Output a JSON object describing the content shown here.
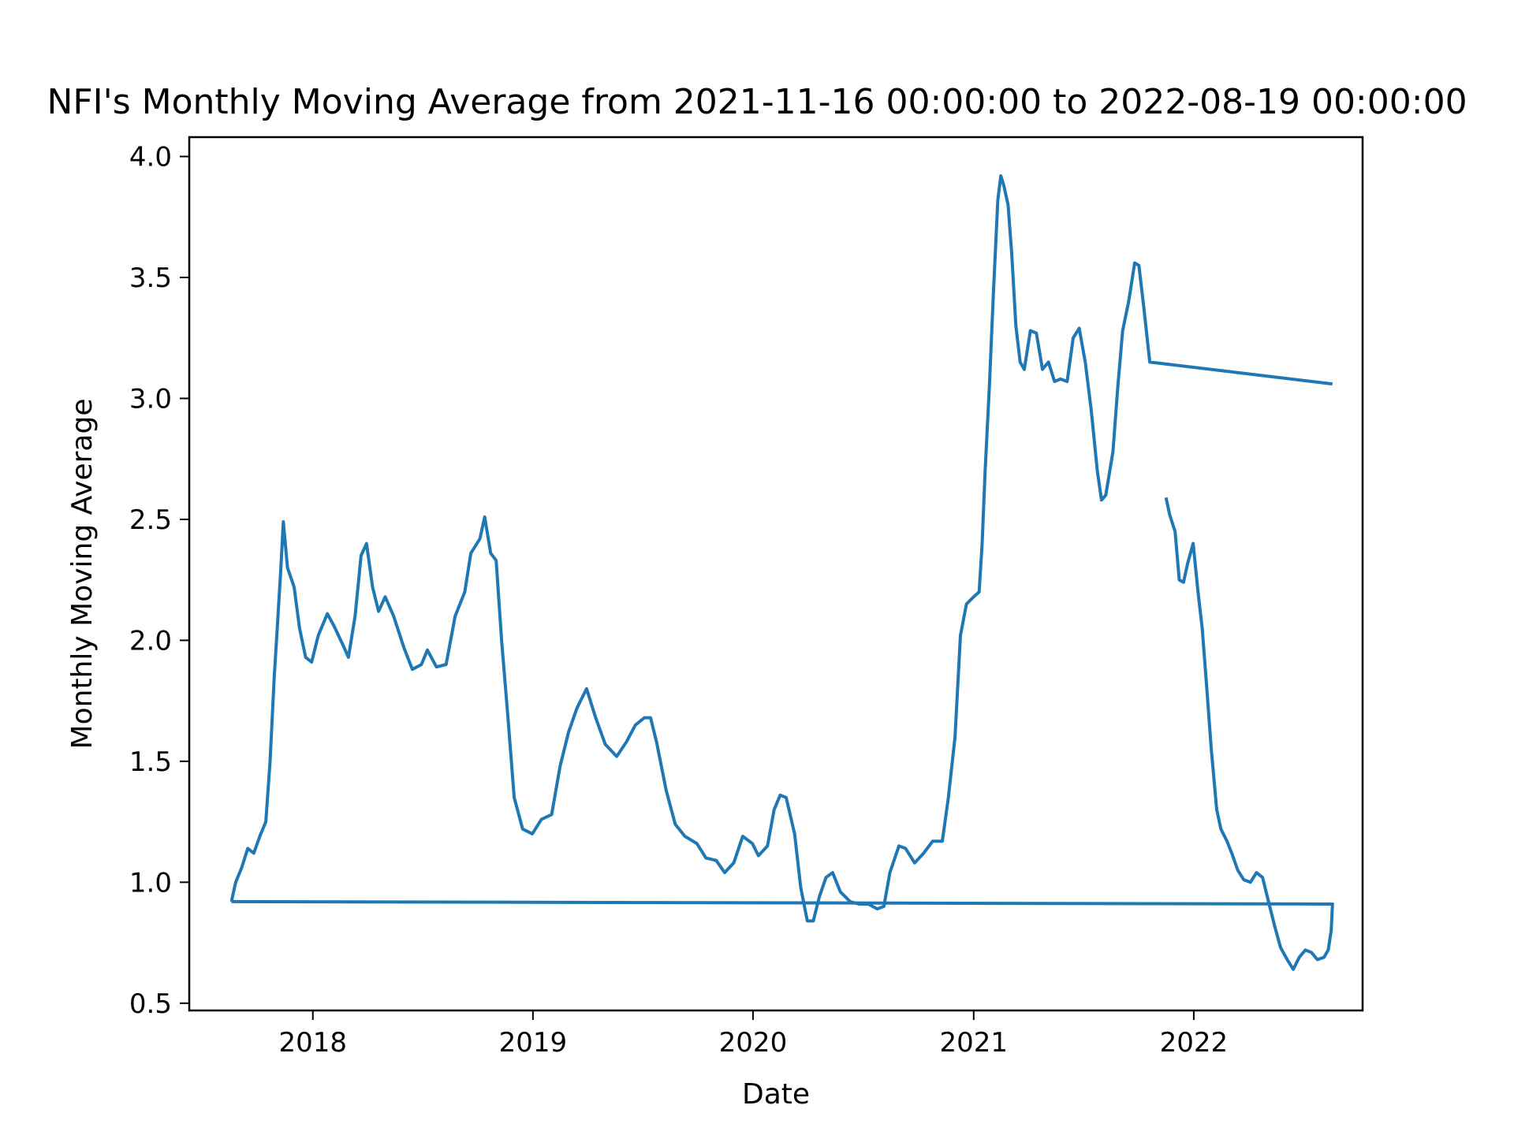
{
  "chart_data": {
    "type": "line",
    "title": "NFI's Monthly Moving Average from 2021-11-16 00:00:00 to 2022-08-19 00:00:00",
    "xlabel": "Date",
    "ylabel": "Monthly Moving Average",
    "x_ticks": [
      "2018",
      "2019",
      "2020",
      "2021",
      "2022"
    ],
    "y_ticks": [
      "0.5",
      "1.0",
      "1.5",
      "2.0",
      "2.5",
      "3.0",
      "3.5",
      "4.0"
    ],
    "xlim": [
      "2017-06-10",
      "2022-10-08"
    ],
    "ylim": [
      0.47,
      4.08
    ],
    "grid": false,
    "legend": "none",
    "colors": {
      "line": "#1f77b4"
    },
    "segments": [
      {
        "points": [
          [
            "2017-08-19",
            0.92
          ],
          [
            "2017-08-26",
            1.0
          ],
          [
            "2017-09-05",
            1.06
          ],
          [
            "2017-09-15",
            1.14
          ],
          [
            "2017-09-25",
            1.12
          ],
          [
            "2017-10-05",
            1.19
          ],
          [
            "2017-10-15",
            1.25
          ],
          [
            "2017-10-22",
            1.5
          ],
          [
            "2017-10-29",
            1.85
          ],
          [
            "2017-11-03",
            2.05
          ],
          [
            "2017-11-09",
            2.3
          ],
          [
            "2017-11-13",
            2.49
          ],
          [
            "2017-11-20",
            2.3
          ],
          [
            "2017-12-01",
            2.22
          ],
          [
            "2017-12-10",
            2.05
          ],
          [
            "2017-12-20",
            1.93
          ],
          [
            "2017-12-30",
            1.91
          ],
          [
            "2018-01-10",
            2.02
          ],
          [
            "2018-01-25",
            2.11
          ],
          [
            "2018-02-05",
            2.06
          ],
          [
            "2018-02-20",
            1.98
          ],
          [
            "2018-03-01",
            1.93
          ],
          [
            "2018-03-12",
            2.1
          ],
          [
            "2018-03-22",
            2.35
          ],
          [
            "2018-03-31",
            2.4
          ],
          [
            "2018-04-10",
            2.22
          ],
          [
            "2018-04-20",
            2.12
          ],
          [
            "2018-05-01",
            2.18
          ],
          [
            "2018-05-15",
            2.1
          ],
          [
            "2018-06-01",
            1.97
          ],
          [
            "2018-06-15",
            1.88
          ],
          [
            "2018-06-30",
            1.9
          ],
          [
            "2018-07-10",
            1.96
          ],
          [
            "2018-07-25",
            1.89
          ],
          [
            "2018-08-10",
            1.9
          ],
          [
            "2018-08-25",
            2.1
          ],
          [
            "2018-09-10",
            2.2
          ],
          [
            "2018-09-20",
            2.36
          ],
          [
            "2018-10-05",
            2.42
          ],
          [
            "2018-10-13",
            2.51
          ],
          [
            "2018-10-23",
            2.36
          ],
          [
            "2018-11-01",
            2.33
          ],
          [
            "2018-11-10",
            2.0
          ],
          [
            "2018-11-20",
            1.7
          ],
          [
            "2018-12-01",
            1.35
          ],
          [
            "2018-12-15",
            1.22
          ],
          [
            "2018-12-31",
            1.2
          ],
          [
            "2019-01-15",
            1.26
          ],
          [
            "2019-02-01",
            1.28
          ],
          [
            "2019-02-15",
            1.48
          ],
          [
            "2019-03-01",
            1.62
          ],
          [
            "2019-03-15",
            1.72
          ],
          [
            "2019-03-31",
            1.8
          ],
          [
            "2019-04-15",
            1.68
          ],
          [
            "2019-05-01",
            1.57
          ],
          [
            "2019-05-20",
            1.52
          ],
          [
            "2019-06-05",
            1.58
          ],
          [
            "2019-06-20",
            1.65
          ],
          [
            "2019-07-05",
            1.68
          ],
          [
            "2019-07-15",
            1.68
          ],
          [
            "2019-07-25",
            1.58
          ],
          [
            "2019-08-10",
            1.38
          ],
          [
            "2019-08-25",
            1.24
          ],
          [
            "2019-09-10",
            1.19
          ],
          [
            "2019-09-30",
            1.16
          ],
          [
            "2019-10-15",
            1.1
          ],
          [
            "2019-11-01",
            1.09
          ],
          [
            "2019-11-15",
            1.04
          ],
          [
            "2019-11-30",
            1.08
          ],
          [
            "2019-12-15",
            1.19
          ],
          [
            "2019-12-31",
            1.16
          ],
          [
            "2020-01-10",
            1.11
          ],
          [
            "2020-01-25",
            1.15
          ],
          [
            "2020-02-05",
            1.3
          ],
          [
            "2020-02-15",
            1.36
          ],
          [
            "2020-02-25",
            1.35
          ],
          [
            "2020-03-10",
            1.2
          ],
          [
            "2020-03-20",
            0.98
          ],
          [
            "2020-03-31",
            0.84
          ],
          [
            "2020-04-10",
            0.84
          ],
          [
            "2020-04-20",
            0.94
          ],
          [
            "2020-05-01",
            1.02
          ],
          [
            "2020-05-12",
            1.04
          ],
          [
            "2020-05-25",
            0.96
          ],
          [
            "2020-06-10",
            0.92
          ],
          [
            "2020-06-25",
            0.91
          ],
          [
            "2020-07-10",
            0.91
          ],
          [
            "2020-07-25",
            0.89
          ],
          [
            "2020-08-05",
            0.9
          ],
          [
            "2020-08-15",
            1.04
          ],
          [
            "2020-08-30",
            1.15
          ],
          [
            "2020-09-10",
            1.14
          ],
          [
            "2020-09-25",
            1.08
          ],
          [
            "2020-10-10",
            1.12
          ],
          [
            "2020-10-25",
            1.17
          ],
          [
            "2020-11-10",
            1.17
          ],
          [
            "2020-11-20",
            1.35
          ],
          [
            "2020-12-01",
            1.6
          ],
          [
            "2020-12-10",
            2.02
          ],
          [
            "2020-12-20",
            2.15
          ],
          [
            "2021-01-01",
            2.18
          ],
          [
            "2021-01-10",
            2.2
          ],
          [
            "2021-01-15",
            2.4
          ],
          [
            "2021-01-20",
            2.7
          ],
          [
            "2021-01-27",
            3.05
          ],
          [
            "2021-02-03",
            3.45
          ],
          [
            "2021-02-10",
            3.82
          ],
          [
            "2021-02-15",
            3.92
          ],
          [
            "2021-02-20",
            3.88
          ],
          [
            "2021-02-27",
            3.8
          ],
          [
            "2021-03-05",
            3.6
          ],
          [
            "2021-03-12",
            3.3
          ],
          [
            "2021-03-19",
            3.15
          ],
          [
            "2021-03-26",
            3.12
          ],
          [
            "2021-04-05",
            3.28
          ],
          [
            "2021-04-15",
            3.27
          ],
          [
            "2021-04-25",
            3.12
          ],
          [
            "2021-05-05",
            3.15
          ],
          [
            "2021-05-15",
            3.07
          ],
          [
            "2021-05-25",
            3.08
          ],
          [
            "2021-06-05",
            3.07
          ],
          [
            "2021-06-15",
            3.25
          ],
          [
            "2021-06-25",
            3.29
          ],
          [
            "2021-07-05",
            3.15
          ],
          [
            "2021-07-15",
            2.95
          ],
          [
            "2021-07-25",
            2.7
          ],
          [
            "2021-08-01",
            2.58
          ],
          [
            "2021-08-08",
            2.6
          ],
          [
            "2021-08-20",
            2.78
          ],
          [
            "2021-08-28",
            3.05
          ],
          [
            "2021-09-05",
            3.28
          ],
          [
            "2021-09-15",
            3.4
          ],
          [
            "2021-09-25",
            3.56
          ],
          [
            "2021-10-02",
            3.55
          ],
          [
            "2021-10-10",
            3.38
          ],
          [
            "2021-10-20",
            3.15
          ],
          [
            "2022-08-19",
            3.06
          ]
        ]
      },
      {
        "points": [
          [
            "2021-11-16",
            2.59
          ],
          [
            "2021-11-22",
            2.52
          ],
          [
            "2021-12-01",
            2.45
          ],
          [
            "2021-12-08",
            2.25
          ],
          [
            "2021-12-15",
            2.24
          ],
          [
            "2021-12-22",
            2.32
          ],
          [
            "2021-12-31",
            2.4
          ],
          [
            "2022-01-08",
            2.2
          ],
          [
            "2022-01-15",
            2.05
          ],
          [
            "2022-01-22",
            1.82
          ],
          [
            "2022-01-30",
            1.55
          ],
          [
            "2022-02-08",
            1.3
          ],
          [
            "2022-02-15",
            1.22
          ],
          [
            "2022-02-25",
            1.17
          ],
          [
            "2022-03-05",
            1.12
          ],
          [
            "2022-03-15",
            1.05
          ],
          [
            "2022-03-25",
            1.01
          ],
          [
            "2022-04-05",
            1.0
          ],
          [
            "2022-04-15",
            1.04
          ],
          [
            "2022-04-25",
            1.02
          ],
          [
            "2022-05-05",
            0.92
          ],
          [
            "2022-05-15",
            0.82
          ],
          [
            "2022-05-25",
            0.73
          ],
          [
            "2022-06-05",
            0.68
          ],
          [
            "2022-06-15",
            0.64
          ],
          [
            "2022-06-25",
            0.69
          ],
          [
            "2022-07-05",
            0.72
          ],
          [
            "2022-07-15",
            0.71
          ],
          [
            "2022-07-25",
            0.68
          ],
          [
            "2022-08-05",
            0.69
          ],
          [
            "2022-08-12",
            0.72
          ],
          [
            "2022-08-17",
            0.8
          ],
          [
            "2022-08-19",
            0.91
          ],
          [
            "2017-08-19",
            0.92
          ]
        ]
      }
    ]
  }
}
